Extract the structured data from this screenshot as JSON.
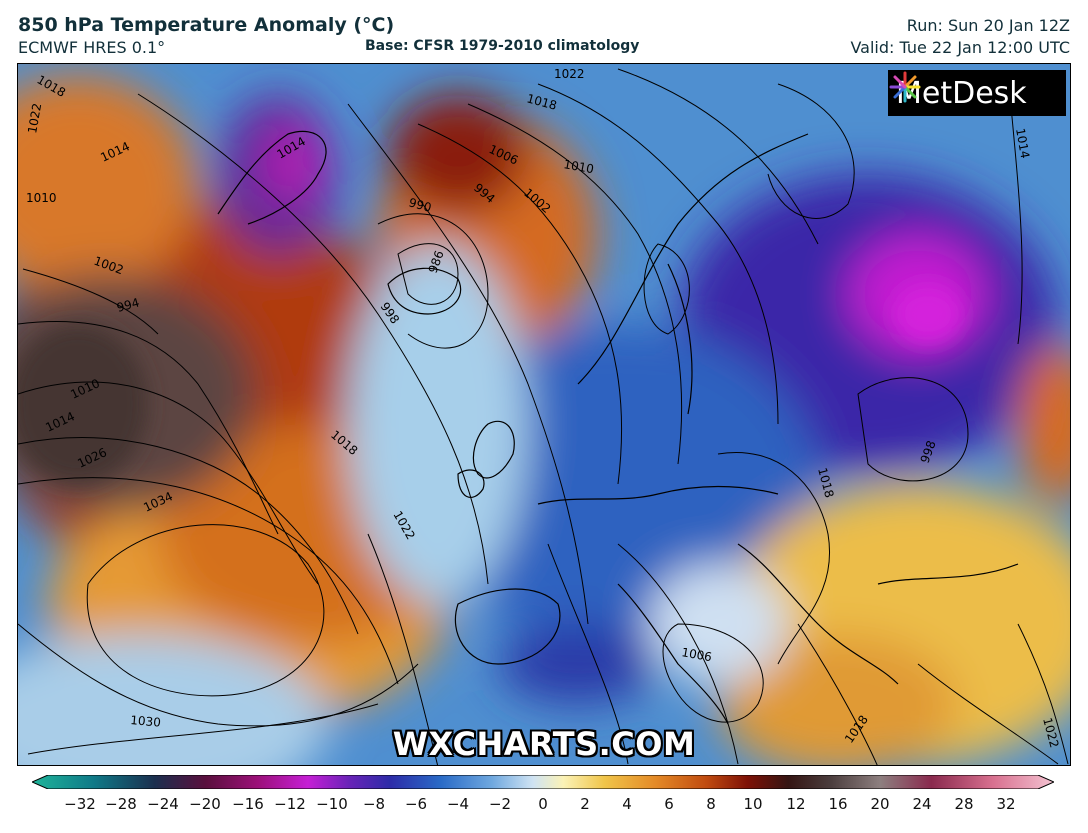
{
  "header": {
    "title": "850 hPa Temperature Anomaly (°C)",
    "model": "ECMWF HRES 0.1°",
    "base": "Base: CFSR 1979-2010 climatology",
    "run": "Run: Sun 20 Jan 12Z",
    "valid": "Valid: Tue 22 Jan 12:00 UTC"
  },
  "logo": {
    "text": "MetDesk",
    "icon": "pinwheel-logo-icon"
  },
  "watermark": "WXCHARTS.COM",
  "map": {
    "region": "North Atlantic and Europe",
    "isobar_labels": [
      "1018",
      "1014",
      "1010",
      "1022",
      "1006",
      "1002",
      "994",
      "990",
      "986",
      "1010",
      "1014",
      "1018",
      "1022",
      "1002",
      "994",
      "998",
      "1010",
      "1014",
      "1026",
      "1034",
      "1030",
      "1018",
      "1022",
      "1006",
      "1018",
      "1018",
      "1022",
      "1014",
      "998"
    ]
  },
  "colorbar": {
    "ticks": [
      "−32",
      "−28",
      "−24",
      "−20",
      "−16",
      "−12",
      "−10",
      "−8",
      "−6",
      "−4",
      "−2",
      "0",
      "2",
      "4",
      "6",
      "8",
      "10",
      "12",
      "16",
      "20",
      "24",
      "28",
      "32"
    ]
  }
}
